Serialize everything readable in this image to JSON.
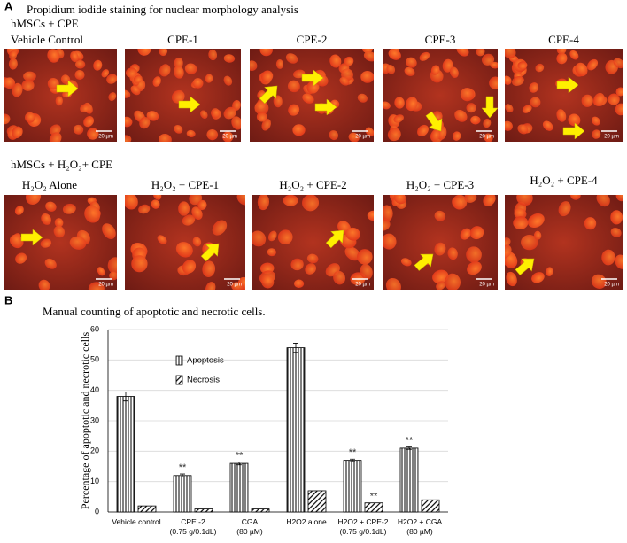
{
  "panel_a": {
    "label": "A",
    "title": "Propidium iodide staining for nuclear morphology analysis",
    "groups": [
      {
        "heading": "hMSCs + CPE",
        "images": [
          "Vehicle Control",
          "CPE-1",
          "CPE-2",
          "CPE-3",
          "CPE-4"
        ]
      },
      {
        "heading": "hMSCs + H₂O₂+ CPE",
        "images": [
          "H₂O₂ Alone",
          "H₂O₂ + CPE-1",
          "H₂O₂ + CPE-2",
          "H₂O₂ + CPE-3",
          "H₂O₂ + CPE-4"
        ]
      }
    ],
    "scale_bar": "20 µm"
  },
  "panel_b": {
    "label": "B"
  },
  "chart_data": {
    "type": "bar",
    "title": "Manual counting of apoptotic and necrotic cells.",
    "y_label": "Percentage of apoptotic and necrotic cells",
    "categories": [
      "Vehicle control",
      "CPE -2\n(0.75 g/0.1dL)",
      "CGA\n(80 µM)",
      "H2O2 alone",
      "H2O2 + CPE-2\n(0.75 g/0.1dL)",
      "H2O2 + CGA\n(80 µM)"
    ],
    "series": [
      {
        "name": "Apoptosis",
        "pattern": "vertical",
        "color": "#000000",
        "values": [
          38,
          12,
          16,
          54,
          17,
          21
        ],
        "errors": [
          1.5,
          0.5,
          0.5,
          1.5,
          0.4,
          0.4
        ],
        "markers": [
          null,
          "**",
          "**",
          null,
          "**",
          "**"
        ]
      },
      {
        "name": "Necrosis",
        "pattern": "diagonal",
        "color": "#000000",
        "values": [
          2,
          1,
          1,
          7,
          3,
          4
        ],
        "markers": [
          null,
          null,
          null,
          null,
          "**",
          null
        ]
      }
    ],
    "ylim": [
      0,
      60
    ],
    "yticks": [
      0,
      10,
      20,
      30,
      40,
      50,
      60
    ],
    "grid": true
  }
}
